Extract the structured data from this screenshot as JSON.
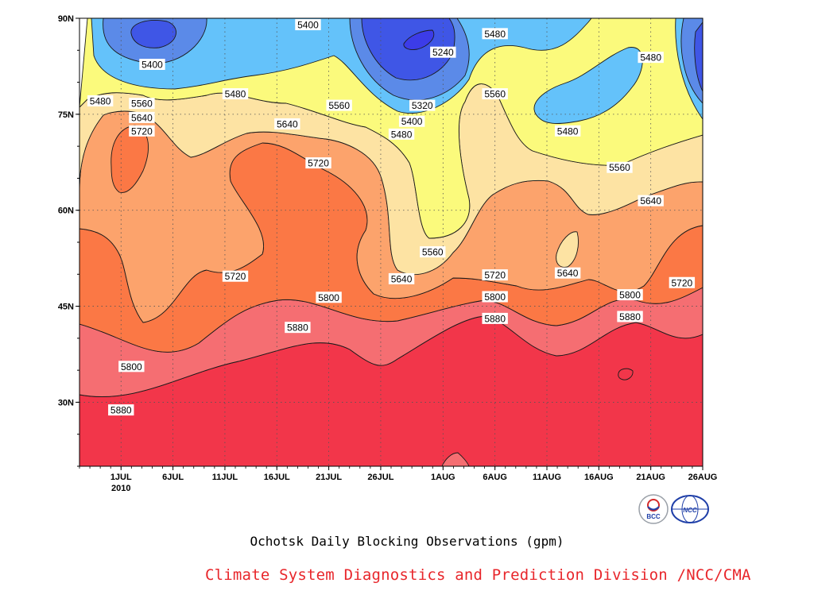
{
  "chart_data": {
    "type": "heatmap",
    "subtype": "filled-contour",
    "title": "Ochotsk Daily Blocking Observations (gpm)",
    "x_axis": {
      "type": "date",
      "range": [
        "2010-06-27",
        "2010-08-26"
      ],
      "tick_labels": [
        "1JUL",
        "6JUL",
        "11JUL",
        "16JUL",
        "21JUL",
        "26JUL",
        "1AUG",
        "6AUG",
        "11AUG",
        "16AUG",
        "21AUG",
        "26AUG"
      ],
      "year_label": "2010"
    },
    "y_axis": {
      "range": [
        20,
        90
      ],
      "tick_labels": [
        "30N",
        "45N",
        "60N",
        "75N",
        "90N"
      ]
    },
    "grid": true,
    "contour_levels": [
      5240,
      5320,
      5400,
      5480,
      5560,
      5640,
      5720,
      5800,
      5880
    ],
    "fill_colors": {
      "below_5240": "#3c3ce8",
      "5240_5320": "#3f56e6",
      "5320_5400": "#5b8ae8",
      "5400_5480": "#64c2fa",
      "5480_5560": "#fbfa7c",
      "5560_5640": "#fde3a3",
      "5640_5720": "#fca36c",
      "5720_5800": "#fb7845",
      "5800_5880": "#f56e72",
      "above_5880": "#f2364a"
    },
    "contour_labels": [
      {
        "value": "5400",
        "date": "2010-07-19",
        "lat": 89.0
      },
      {
        "value": "5480",
        "date": "2010-08-06",
        "lat": 87.6
      },
      {
        "value": "5240",
        "date": "2010-08-01",
        "lat": 84.7
      },
      {
        "value": "5400",
        "date": "2010-07-04",
        "lat": 82.8
      },
      {
        "value": "5480",
        "date": "2010-08-21",
        "lat": 83.9
      },
      {
        "value": "5560",
        "date": "2010-08-06",
        "lat": 78.2
      },
      {
        "value": "5480",
        "date": "2010-07-12",
        "lat": 78.2
      },
      {
        "value": "5480",
        "date": "2010-06-29",
        "lat": 77.1
      },
      {
        "value": "5560",
        "date": "2010-07-03",
        "lat": 76.7
      },
      {
        "value": "5560",
        "date": "2010-07-22",
        "lat": 76.4
      },
      {
        "value": "5320",
        "date": "2010-07-30",
        "lat": 76.4
      },
      {
        "value": "5640",
        "date": "2010-07-03",
        "lat": 74.5
      },
      {
        "value": "5400",
        "date": "2010-07-29",
        "lat": 73.9
      },
      {
        "value": "5640",
        "date": "2010-07-17",
        "lat": 73.5
      },
      {
        "value": "5720",
        "date": "2010-07-03",
        "lat": 72.4
      },
      {
        "value": "5480",
        "date": "2010-08-13",
        "lat": 72.4
      },
      {
        "value": "5480",
        "date": "2010-07-28",
        "lat": 71.9
      },
      {
        "value": "5720",
        "date": "2010-07-20",
        "lat": 67.4
      },
      {
        "value": "5560",
        "date": "2010-08-18",
        "lat": 66.7
      },
      {
        "value": "5640",
        "date": "2010-08-21",
        "lat": 61.5
      },
      {
        "value": "5560",
        "date": "2010-07-31",
        "lat": 53.5
      },
      {
        "value": "5720",
        "date": "2010-07-12",
        "lat": 49.7
      },
      {
        "value": "5720",
        "date": "2010-08-06",
        "lat": 49.9
      },
      {
        "value": "5640",
        "date": "2010-08-13",
        "lat": 50.2
      },
      {
        "value": "5640",
        "date": "2010-07-28",
        "lat": 49.3
      },
      {
        "value": "5720",
        "date": "2010-08-24",
        "lat": 48.7
      },
      {
        "value": "5800",
        "date": "2010-07-21",
        "lat": 46.4
      },
      {
        "value": "5800",
        "date": "2010-08-06",
        "lat": 46.5
      },
      {
        "value": "5800",
        "date": "2010-08-19",
        "lat": 46.8
      },
      {
        "value": "5880",
        "date": "2010-07-18",
        "lat": 41.7
      },
      {
        "value": "5880",
        "date": "2010-08-06",
        "lat": 43.1
      },
      {
        "value": "5880",
        "date": "2010-08-19",
        "lat": 43.4
      },
      {
        "value": "5800",
        "date": "2010-07-02",
        "lat": 35.6
      },
      {
        "value": "5880",
        "date": "2010-07-01",
        "lat": 28.8
      }
    ]
  },
  "footer": {
    "credit": "Climate System Diagnostics and Prediction Division /NCC/CMA",
    "logos": [
      {
        "name": "BCC",
        "text": "BCC"
      },
      {
        "name": "NCC",
        "text": "NCC"
      }
    ]
  },
  "colors": {
    "credit_text": "#e8262b",
    "logo_blue": "#1f3fa8"
  }
}
